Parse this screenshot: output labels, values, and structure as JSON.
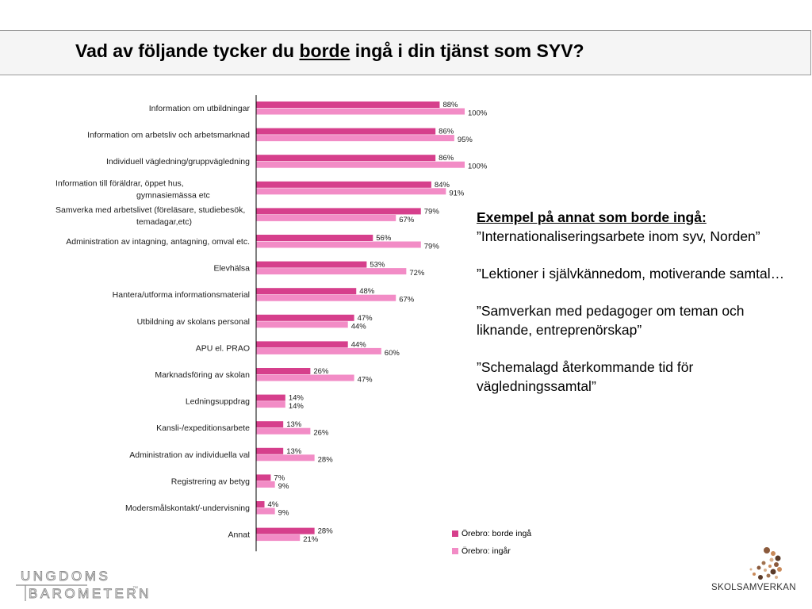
{
  "title": {
    "before": "Vad av följande tycker du ",
    "underlined": "borde",
    "after": " ingå i din tjänst som SYV?"
  },
  "colors": {
    "series_1": "#d63f8c",
    "series_2": "#f28cc6"
  },
  "chart_data": {
    "type": "bar",
    "orientation": "horizontal",
    "categories": [
      "Information om utbildningar",
      "Information om arbetsliv och arbetsmarknad",
      "Individuell vägledning/gruppvägledning",
      "Information till föräldrar, öppet hus, gymnasiemässa etc",
      "Samverka med arbetslivet (föreläsare, studiebesök, temadagar,etc)",
      "Administration av intagning, antagning, omval etc.",
      "Elevhälsa",
      "Hantera/utforma informationsmaterial",
      "Utbildning av skolans personal",
      "APU el. PRAO",
      "Marknadsföring av skolan",
      "Ledningsuppdrag",
      "Kansli-/expeditionsarbete",
      "Administration av individuella val",
      "Registrering av betyg",
      "Modersmålskontakt/-undervisning",
      "Annat"
    ],
    "series": [
      {
        "name": "Örebro: borde ingå",
        "values": [
          88,
          86,
          86,
          84,
          79,
          56,
          53,
          48,
          47,
          44,
          26,
          14,
          13,
          13,
          7,
          4,
          28
        ]
      },
      {
        "name": "Örebro: ingår",
        "values": [
          100,
          95,
          100,
          91,
          67,
          79,
          72,
          67,
          44,
          60,
          47,
          14,
          26,
          28,
          9,
          9,
          21
        ]
      }
    ],
    "value_suffix": "%",
    "xlim": [
      0,
      100
    ],
    "legend_position": "bottom-right"
  },
  "examples": {
    "heading": "Exempel på annat som borde ingå:",
    "items": [
      "”Internationaliseringsarbete inom syv, Norden”",
      "”Lektioner i självkännedom, motiverande samtal…",
      "”Samverkan med pedagoger om teman och liknande, entreprenörskap”",
      "”Schemalagd återkommande tid för vägledningssamtal”"
    ]
  },
  "logos": {
    "left_line1": "UNGDOMS",
    "left_line2": "BAROMETERN",
    "left_tm": "™",
    "right": "SKOLSAMVERKAN"
  }
}
